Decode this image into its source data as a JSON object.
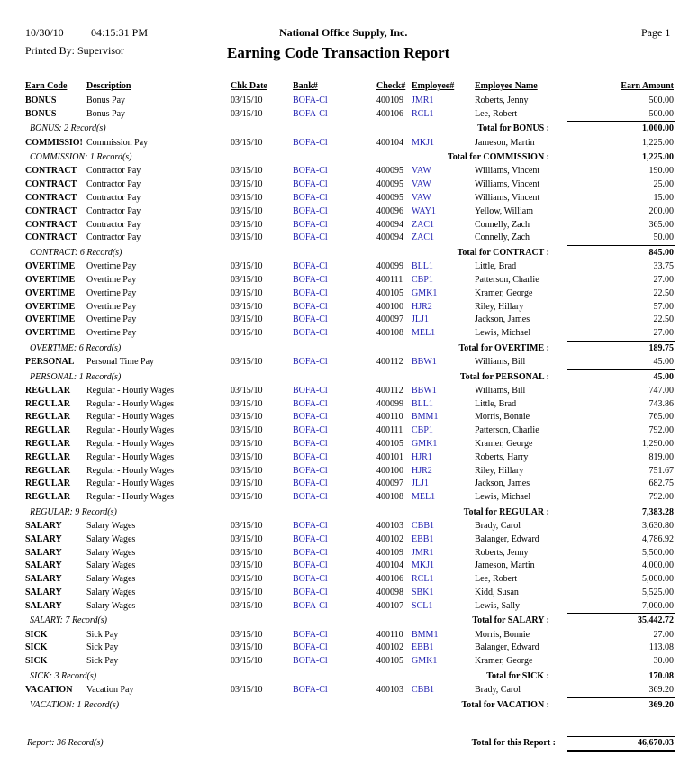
{
  "header": {
    "date": "10/30/10",
    "time": "04:15:31 PM",
    "company": "National Office Supply, Inc.",
    "page": "Page 1",
    "printed_by": "Printed By: Supervisor",
    "title": "Earning Code Transaction Report"
  },
  "columns": [
    "Earn Code",
    "Description",
    "Chk Date",
    "Bank#",
    "Check#",
    "Employee#",
    "Employee Name",
    "Earn Amount"
  ],
  "groups": [
    {
      "rows": [
        [
          "BONUS",
          "Bonus Pay",
          "03/15/10",
          "BOFA-Cl",
          "400109",
          "JMR1",
          "Roberts, Jenny",
          "500.00"
        ],
        [
          "BONUS",
          "Bonus Pay",
          "03/15/10",
          "BOFA-Cl",
          "400106",
          "RCL1",
          "Lee, Robert",
          "500.00"
        ]
      ],
      "records": "BONUS: 2 Record(s)",
      "total_label": "Total for BONUS :",
      "total": "1,000.00"
    },
    {
      "rows": [
        [
          "COMMISSIO!",
          "Commission Pay",
          "03/15/10",
          "BOFA-Cl",
          "400104",
          "MKJ1",
          "Jameson, Martin",
          "1,225.00"
        ]
      ],
      "records": "COMMISSION: 1 Record(s)",
      "total_label": "Total for COMMISSION :",
      "total": "1,225.00"
    },
    {
      "rows": [
        [
          "CONTRACT",
          "Contractor Pay",
          "03/15/10",
          "BOFA-Cl",
          "400095",
          "VAW",
          "Williams, Vincent",
          "190.00"
        ],
        [
          "CONTRACT",
          "Contractor Pay",
          "03/15/10",
          "BOFA-Cl",
          "400095",
          "VAW",
          "Williams, Vincent",
          "25.00"
        ],
        [
          "CONTRACT",
          "Contractor Pay",
          "03/15/10",
          "BOFA-Cl",
          "400095",
          "VAW",
          "Williams, Vincent",
          "15.00"
        ],
        [
          "CONTRACT",
          "Contractor Pay",
          "03/15/10",
          "BOFA-Cl",
          "400096",
          "WAY1",
          "Yellow, William",
          "200.00"
        ],
        [
          "CONTRACT",
          "Contractor Pay",
          "03/15/10",
          "BOFA-Cl",
          "400094",
          "ZAC1",
          "Connelly, Zach",
          "365.00"
        ],
        [
          "CONTRACT",
          "Contractor Pay",
          "03/15/10",
          "BOFA-Cl",
          "400094",
          "ZAC1",
          "Connelly, Zach",
          "50.00"
        ]
      ],
      "records": "CONTRACT: 6 Record(s)",
      "total_label": "Total for CONTRACT :",
      "total": "845.00"
    },
    {
      "rows": [
        [
          "OVERTIME",
          "Overtime Pay",
          "03/15/10",
          "BOFA-Cl",
          "400099",
          "BLL1",
          "Little, Brad",
          "33.75"
        ],
        [
          "OVERTIME",
          "Overtime Pay",
          "03/15/10",
          "BOFA-Cl",
          "400111",
          "CBP1",
          "Patterson, Charlie",
          "27.00"
        ],
        [
          "OVERTIME",
          "Overtime Pay",
          "03/15/10",
          "BOFA-Cl",
          "400105",
          "GMK1",
          "Kramer, George",
          "22.50"
        ],
        [
          "OVERTIME",
          "Overtime Pay",
          "03/15/10",
          "BOFA-Cl",
          "400100",
          "HJR2",
          "Riley, Hillary",
          "57.00"
        ],
        [
          "OVERTIME",
          "Overtime Pay",
          "03/15/10",
          "BOFA-Cl",
          "400097",
          "JLJ1",
          "Jackson, James",
          "22.50"
        ],
        [
          "OVERTIME",
          "Overtime Pay",
          "03/15/10",
          "BOFA-Cl",
          "400108",
          "MEL1",
          "Lewis, Michael",
          "27.00"
        ]
      ],
      "records": "OVERTIME: 6 Record(s)",
      "total_label": "Total for OVERTIME :",
      "total": "189.75"
    },
    {
      "rows": [
        [
          "PERSONAL",
          "Personal Time Pay",
          "03/15/10",
          "BOFA-Cl",
          "400112",
          "BBW1",
          "Williams, Bill",
          "45.00"
        ]
      ],
      "records": "PERSONAL: 1 Record(s)",
      "total_label": "Total for PERSONAL :",
      "total": "45.00"
    },
    {
      "rows": [
        [
          "REGULAR",
          "Regular - Hourly Wages",
          "03/15/10",
          "BOFA-Cl",
          "400112",
          "BBW1",
          "Williams, Bill",
          "747.00"
        ],
        [
          "REGULAR",
          "Regular - Hourly Wages",
          "03/15/10",
          "BOFA-Cl",
          "400099",
          "BLL1",
          "Little, Brad",
          "743.86"
        ],
        [
          "REGULAR",
          "Regular - Hourly Wages",
          "03/15/10",
          "BOFA-Cl",
          "400110",
          "BMM1",
          "Morris, Bonnie",
          "765.00"
        ],
        [
          "REGULAR",
          "Regular - Hourly Wages",
          "03/15/10",
          "BOFA-Cl",
          "400111",
          "CBP1",
          "Patterson, Charlie",
          "792.00"
        ],
        [
          "REGULAR",
          "Regular - Hourly Wages",
          "03/15/10",
          "BOFA-Cl",
          "400105",
          "GMK1",
          "Kramer, George",
          "1,290.00"
        ],
        [
          "REGULAR",
          "Regular - Hourly Wages",
          "03/15/10",
          "BOFA-Cl",
          "400101",
          "HJR1",
          "Roberts, Harry",
          "819.00"
        ],
        [
          "REGULAR",
          "Regular - Hourly Wages",
          "03/15/10",
          "BOFA-Cl",
          "400100",
          "HJR2",
          "Riley, Hillary",
          "751.67"
        ],
        [
          "REGULAR",
          "Regular - Hourly Wages",
          "03/15/10",
          "BOFA-Cl",
          "400097",
          "JLJ1",
          "Jackson, James",
          "682.75"
        ],
        [
          "REGULAR",
          "Regular - Hourly Wages",
          "03/15/10",
          "BOFA-Cl",
          "400108",
          "MEL1",
          "Lewis, Michael",
          "792.00"
        ]
      ],
      "records": "REGULAR: 9 Record(s)",
      "total_label": "Total for REGULAR :",
      "total": "7,383.28"
    },
    {
      "rows": [
        [
          "SALARY",
          "Salary Wages",
          "03/15/10",
          "BOFA-Cl",
          "400103",
          "CBB1",
          "Brady, Carol",
          "3,630.80"
        ],
        [
          "SALARY",
          "Salary Wages",
          "03/15/10",
          "BOFA-Cl",
          "400102",
          "EBB1",
          "Balanger, Edward",
          "4,786.92"
        ],
        [
          "SALARY",
          "Salary Wages",
          "03/15/10",
          "BOFA-Cl",
          "400109",
          "JMR1",
          "Roberts, Jenny",
          "5,500.00"
        ],
        [
          "SALARY",
          "Salary Wages",
          "03/15/10",
          "BOFA-Cl",
          "400104",
          "MKJ1",
          "Jameson, Martin",
          "4,000.00"
        ],
        [
          "SALARY",
          "Salary Wages",
          "03/15/10",
          "BOFA-Cl",
          "400106",
          "RCL1",
          "Lee, Robert",
          "5,000.00"
        ],
        [
          "SALARY",
          "Salary Wages",
          "03/15/10",
          "BOFA-Cl",
          "400098",
          "SBK1",
          "Kidd, Susan",
          "5,525.00"
        ],
        [
          "SALARY",
          "Salary Wages",
          "03/15/10",
          "BOFA-Cl",
          "400107",
          "SCL1",
          "Lewis, Sally",
          "7,000.00"
        ]
      ],
      "records": "SALARY: 7 Record(s)",
      "total_label": "Total for SALARY :",
      "total": "35,442.72"
    },
    {
      "rows": [
        [
          "SICK",
          "Sick Pay",
          "03/15/10",
          "BOFA-Cl",
          "400110",
          "BMM1",
          "Morris, Bonnie",
          "27.00"
        ],
        [
          "SICK",
          "Sick Pay",
          "03/15/10",
          "BOFA-Cl",
          "400102",
          "EBB1",
          "Balanger, Edward",
          "113.08"
        ],
        [
          "SICK",
          "Sick Pay",
          "03/15/10",
          "BOFA-Cl",
          "400105",
          "GMK1",
          "Kramer, George",
          "30.00"
        ]
      ],
      "records": "SICK: 3 Record(s)",
      "total_label": "Total for SICK :",
      "total": "170.08"
    },
    {
      "rows": [
        [
          "VACATION",
          "Vacation Pay",
          "03/15/10",
          "BOFA-Cl",
          "400103",
          "CBB1",
          "Brady, Carol",
          "369.20"
        ]
      ],
      "records": "VACATION: 1 Record(s)",
      "total_label": "Total for VACATION :",
      "total": "369.20"
    }
  ],
  "report": {
    "records": "Report: 36 Record(s)",
    "total_label": "Total for this Report :",
    "total": "46,670.03"
  }
}
